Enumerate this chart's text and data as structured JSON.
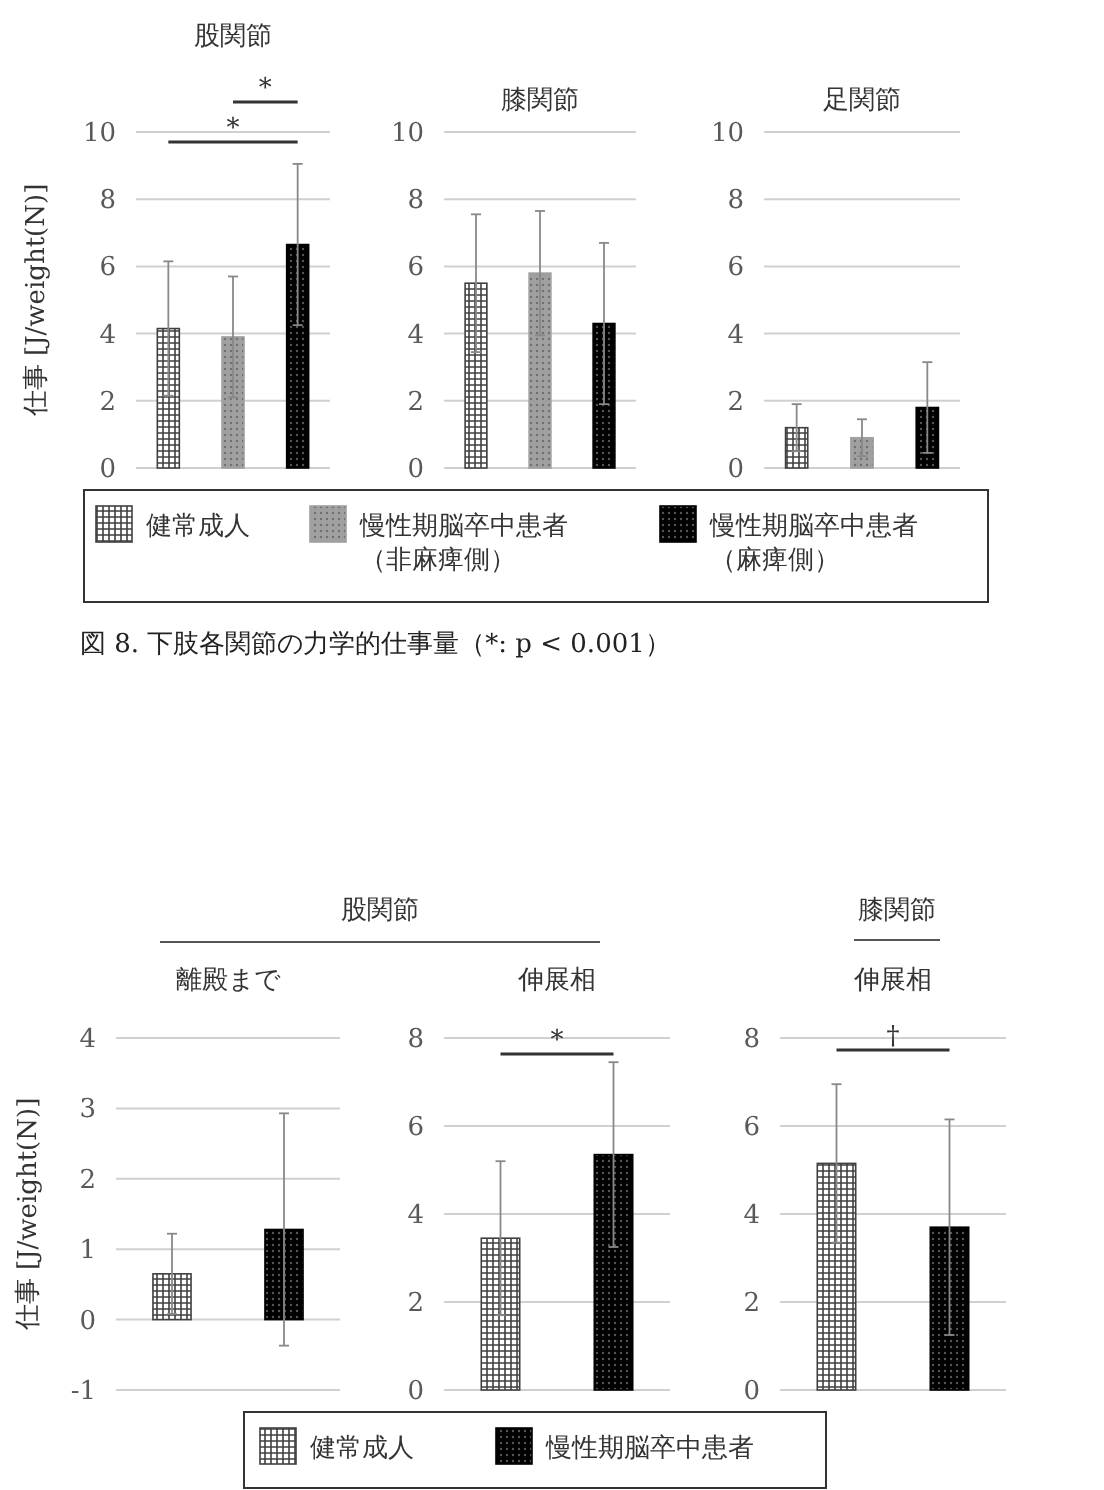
{
  "chart_data": [
    {
      "type": "bar",
      "title": "股関節",
      "ylabel": "仕事 [J/weight(N)]",
      "categories": [
        null
      ],
      "ylim": [
        0,
        10
      ],
      "yticks": [
        0,
        2,
        4,
        6,
        8,
        10
      ],
      "grid": "y",
      "legend": "bottom",
      "annotations": [
        "*",
        "*",
        "図 8. 下肢各関節の力学的仕事量（*: p < 0.001）"
      ],
      "series": [
        {
          "name": "健常成人",
          "color": "#404040",
          "values": [
            4.15
          ],
          "errors": [
            2.0
          ]
        },
        {
          "name": "慢性期脳卒中患者（非麻痺側）",
          "color": "#a0a0a0",
          "values": [
            3.9
          ],
          "errors": [
            1.8
          ]
        },
        {
          "name": "慢性期脳卒中患者（麻痺側）",
          "color": "#000000",
          "values": [
            6.65
          ],
          "errors": [
            2.4
          ]
        }
      ]
    },
    {
      "type": "bar",
      "title": "膝関節",
      "categories": [
        null
      ],
      "ylim": [
        0,
        10
      ],
      "yticks": [
        0,
        2,
        4,
        6,
        8,
        10
      ],
      "grid": "y",
      "series": [
        {
          "color": "#404040",
          "values": [
            5.5
          ],
          "errors": [
            2.05
          ]
        },
        {
          "color": "#a0a0a0",
          "values": [
            5.8
          ],
          "errors": [
            1.85
          ]
        },
        {
          "color": "#000000",
          "values": [
            4.3
          ],
          "errors": [
            2.4
          ]
        }
      ]
    },
    {
      "type": "bar",
      "title": "足関節",
      "categories": [
        null
      ],
      "ylim": [
        0,
        10
      ],
      "yticks": [
        0,
        2,
        4,
        6,
        8,
        10
      ],
      "grid": "y",
      "series": [
        {
          "color": "#404040",
          "values": [
            1.2
          ],
          "errors": [
            0.7
          ]
        },
        {
          "color": "#a0a0a0",
          "values": [
            0.9
          ],
          "errors": [
            0.55
          ]
        },
        {
          "color": "#000000",
          "values": [
            1.8
          ],
          "errors": [
            1.35
          ]
        }
      ]
    },
    {
      "type": "bar",
      "title": "離殿まで",
      "ylabel": "仕事 [J/weight(N)]",
      "categories": [
        null
      ],
      "ylim": [
        -1,
        4
      ],
      "yticks": [
        -1,
        0,
        1,
        2,
        3,
        4
      ],
      "grid": "y",
      "legend": "bottom",
      "annotations": [
        "股関節"
      ],
      "series": [
        {
          "name": "健常成人",
          "color": "#404040",
          "values": [
            0.65
          ],
          "errors": [
            0.57
          ]
        },
        {
          "name": "慢性期脳卒中患者",
          "color": "#000000",
          "values": [
            1.28
          ],
          "errors": [
            1.65
          ]
        }
      ]
    },
    {
      "type": "bar",
      "title": "伸展相",
      "categories": [
        null
      ],
      "ylim": [
        0,
        8
      ],
      "yticks": [
        0,
        2,
        4,
        6,
        8
      ],
      "grid": "y",
      "annotations": [
        "*"
      ],
      "series": [
        {
          "color": "#404040",
          "values": [
            3.45
          ],
          "errors": [
            1.75
          ]
        },
        {
          "color": "#000000",
          "values": [
            5.35
          ],
          "errors": [
            2.1
          ]
        }
      ]
    },
    {
      "type": "bar",
      "title": "伸展相",
      "categories": [
        null
      ],
      "ylim": [
        0,
        8
      ],
      "yticks": [
        0,
        2,
        4,
        6,
        8
      ],
      "grid": "y",
      "annotations": [
        "膝関節",
        "†"
      ],
      "series": [
        {
          "color": "#404040",
          "values": [
            5.15
          ],
          "errors": [
            1.8
          ]
        },
        {
          "color": "#000000",
          "values": [
            3.7
          ],
          "errors": [
            2.45
          ]
        }
      ]
    }
  ]
}
